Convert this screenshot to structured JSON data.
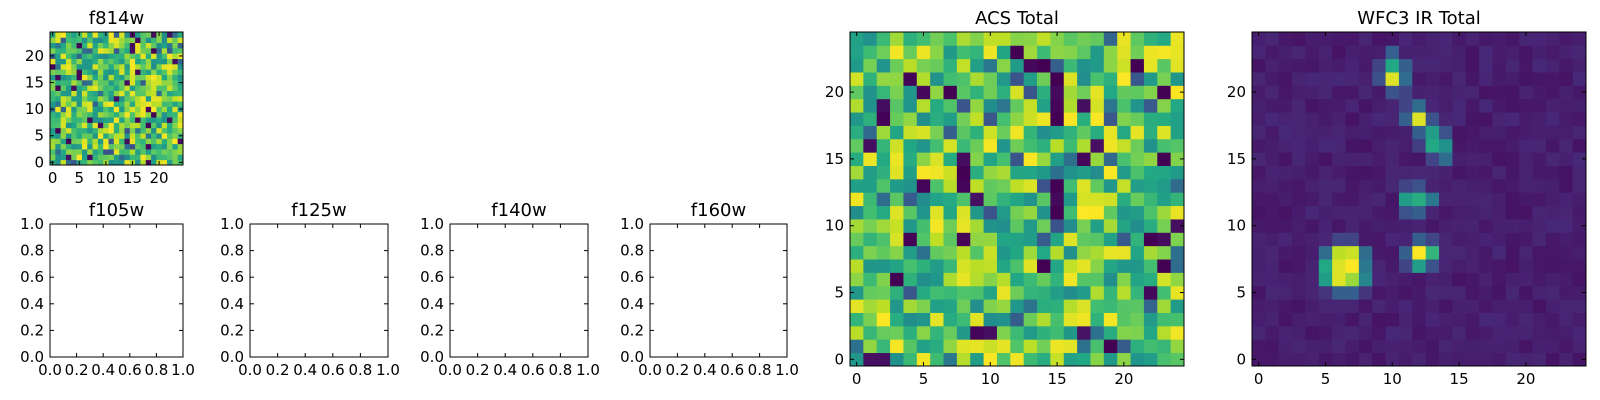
{
  "chart_data": [
    {
      "id": "f814w",
      "type": "heatmap",
      "title": "f814w",
      "grid_size": 25,
      "xticks": [
        0,
        5,
        10,
        15,
        20
      ],
      "yticks": [
        0,
        5,
        10,
        15,
        20
      ],
      "colormap": "viridis",
      "description": "noise-like pixel map with values mostly in the upper (green-yellow) range"
    },
    {
      "id": "f105w",
      "type": "empty_axes",
      "title": "f105w",
      "xlim": [
        0,
        1
      ],
      "ylim": [
        0,
        1
      ],
      "xticks": [
        "0.0",
        "0.2",
        "0.4",
        "0.6",
        "0.8",
        "1.0"
      ],
      "yticks": [
        "0.0",
        "0.2",
        "0.4",
        "0.6",
        "0.8",
        "1.0"
      ]
    },
    {
      "id": "f125w",
      "type": "empty_axes",
      "title": "f125w",
      "xlim": [
        0,
        1
      ],
      "ylim": [
        0,
        1
      ],
      "xticks": [
        "0.0",
        "0.2",
        "0.4",
        "0.6",
        "0.8",
        "1.0"
      ],
      "yticks": [
        "0.0",
        "0.2",
        "0.4",
        "0.6",
        "0.8",
        "1.0"
      ]
    },
    {
      "id": "f140w",
      "type": "empty_axes",
      "title": "f140w",
      "xlim": [
        0,
        1
      ],
      "ylim": [
        0,
        1
      ],
      "xticks": [
        "0.0",
        "0.2",
        "0.4",
        "0.6",
        "0.8",
        "1.0"
      ],
      "yticks": [
        "0.0",
        "0.2",
        "0.4",
        "0.6",
        "0.8",
        "1.0"
      ]
    },
    {
      "id": "f160w",
      "type": "empty_axes",
      "title": "f160w",
      "xlim": [
        0,
        1
      ],
      "ylim": [
        0,
        1
      ],
      "xticks": [
        "0.0",
        "0.2",
        "0.4",
        "0.6",
        "0.8",
        "1.0"
      ],
      "yticks": [
        "0.0",
        "0.2",
        "0.4",
        "0.6",
        "0.8",
        "1.0"
      ]
    },
    {
      "id": "acs_total",
      "type": "heatmap",
      "title": "ACS Total",
      "grid_size": 25,
      "xticks": [
        0,
        5,
        10,
        15,
        20
      ],
      "yticks": [
        0,
        5,
        10,
        15,
        20
      ],
      "colormap": "viridis",
      "dark_pixels": [
        [
          19,
          1
        ],
        [
          3,
          6
        ],
        [
          14,
          7
        ],
        [
          22,
          9
        ],
        [
          15,
          11
        ],
        [
          15,
          13
        ],
        [
          8,
          14
        ],
        [
          23,
          20
        ],
        [
          7,
          20
        ],
        [
          15,
          21
        ],
        [
          21,
          22
        ],
        [
          14,
          22
        ],
        [
          12,
          23
        ]
      ],
      "description": "noise-like pixel map, mostly green-yellow with scattered dark pixels"
    },
    {
      "id": "wfc3_ir_total",
      "type": "heatmap",
      "title": "WFC3 IR Total",
      "grid_size": 25,
      "xticks": [
        0,
        5,
        10,
        15,
        20
      ],
      "yticks": [
        0,
        5,
        10,
        15,
        20
      ],
      "colormap": "viridis",
      "background_value": 0.05,
      "sources": [
        [
          6,
          6,
          0.95
        ],
        [
          7,
          6,
          0.85
        ],
        [
          6,
          7,
          0.95
        ],
        [
          7,
          7,
          1.0
        ],
        [
          6,
          8,
          0.9
        ],
        [
          7,
          8,
          0.92
        ],
        [
          5,
          6,
          0.55
        ],
        [
          5,
          7,
          0.6
        ],
        [
          8,
          6,
          0.45
        ],
        [
          6,
          5,
          0.3
        ],
        [
          7,
          5,
          0.3
        ],
        [
          8,
          7,
          0.4
        ],
        [
          5,
          8,
          0.35
        ],
        [
          8,
          8,
          0.35
        ],
        [
          6,
          9,
          0.2
        ],
        [
          7,
          9,
          0.2
        ],
        [
          5,
          5,
          0.15
        ],
        [
          8,
          5,
          0.15
        ],
        [
          12,
          8,
          1.0
        ],
        [
          13,
          8,
          0.65
        ],
        [
          12,
          7,
          0.55
        ],
        [
          12,
          9,
          0.3
        ],
        [
          11,
          8,
          0.3
        ],
        [
          13,
          7,
          0.25
        ],
        [
          11,
          7,
          0.2
        ],
        [
          13,
          9,
          0.2
        ],
        [
          12,
          12,
          0.62
        ],
        [
          11,
          12,
          0.55
        ],
        [
          13,
          12,
          0.4
        ],
        [
          12,
          11,
          0.3
        ],
        [
          11,
          11,
          0.25
        ],
        [
          12,
          13,
          0.25
        ],
        [
          11,
          13,
          0.2
        ],
        [
          12,
          18,
          0.95
        ],
        [
          13,
          17,
          0.55
        ],
        [
          13,
          16,
          0.6
        ],
        [
          14,
          16,
          0.5
        ],
        [
          11,
          18,
          0.3
        ],
        [
          12,
          19,
          0.35
        ],
        [
          14,
          15,
          0.35
        ],
        [
          12,
          17,
          0.3
        ],
        [
          14,
          17,
          0.25
        ],
        [
          13,
          18,
          0.25
        ],
        [
          13,
          15,
          0.2
        ],
        [
          11,
          19,
          0.2
        ],
        [
          12,
          16,
          0.18
        ],
        [
          10,
          21,
          0.95
        ],
        [
          10,
          22,
          0.6
        ],
        [
          10,
          23,
          0.3
        ],
        [
          11,
          21,
          0.35
        ],
        [
          9,
          21,
          0.25
        ],
        [
          11,
          22,
          0.3
        ],
        [
          9,
          22,
          0.2
        ],
        [
          11,
          20,
          0.2
        ],
        [
          10,
          20,
          0.25
        ]
      ]
    }
  ]
}
